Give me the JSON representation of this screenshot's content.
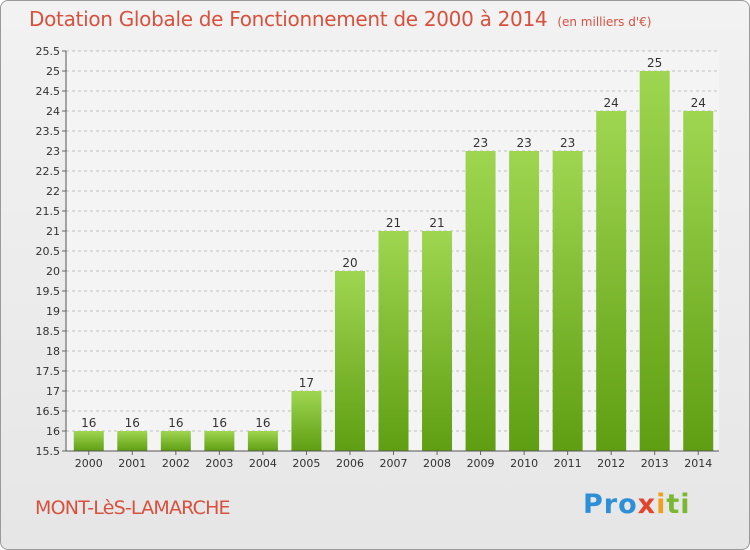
{
  "header": {
    "title": "Dotation Globale de Fonctionnement de 2000 à 2014",
    "unit": "(en milliers d'€)"
  },
  "footer": {
    "commune": "MONT-LèS-LAMARCHE",
    "logo": {
      "text": "Proxiti",
      "colors": [
        "#2d8fd5",
        "#f0a020",
        "#e2452c",
        "#7ab832"
      ]
    }
  },
  "chart_data": {
    "type": "bar",
    "title": "Dotation Globale de Fonctionnement de 2000 à 2014",
    "subtitle": "(en milliers d'€)",
    "xlabel": "",
    "ylabel": "",
    "categories": [
      "2000",
      "2001",
      "2002",
      "2003",
      "2004",
      "2005",
      "2006",
      "2007",
      "2008",
      "2009",
      "2010",
      "2011",
      "2012",
      "2013",
      "2014"
    ],
    "values": [
      16,
      16,
      16,
      16,
      16,
      17,
      20,
      21,
      21,
      23,
      23,
      23,
      24,
      25,
      24
    ],
    "data_labels": [
      "16",
      "16",
      "16",
      "16",
      "16",
      "17",
      "20",
      "21",
      "21",
      "23",
      "23",
      "23",
      "24",
      "25",
      "24"
    ],
    "ylim": [
      15.5,
      25.5
    ],
    "yticks": [
      "15.5",
      "16",
      "16.5",
      "17",
      "17.5",
      "18",
      "18.5",
      "19",
      "19.5",
      "20",
      "20.5",
      "21",
      "21.5",
      "22",
      "22.5",
      "23",
      "23.5",
      "24",
      "24.5",
      "25",
      "25.5"
    ],
    "grid": true,
    "legend": "none",
    "colors": {
      "bar_top": "#9fd651",
      "bar_bottom": "#5f9e12",
      "grid": "#bfbfbf",
      "title": "#d8513f"
    }
  }
}
